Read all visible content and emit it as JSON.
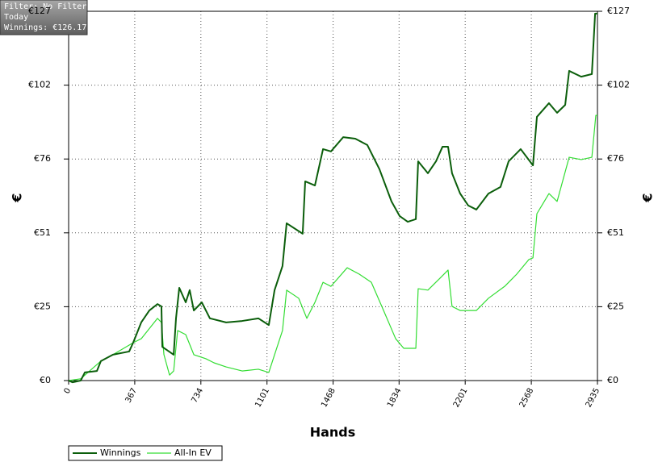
{
  "chart_data": {
    "type": "line",
    "xlabel": "Hands",
    "ylabel": "€",
    "y2label": "€",
    "annotations": [
      "Filter: No Filter",
      "Today",
      "Winnings: €126.17"
    ],
    "xlim": [
      0,
      2935
    ],
    "xticks": [
      0,
      367,
      734,
      1101,
      1468,
      1834,
      2201,
      2568,
      2935
    ],
    "ylim": [
      0,
      127
    ],
    "yticks": [
      {
        "value": 0,
        "label": "€0"
      },
      {
        "value": 25.4,
        "label": "€25"
      },
      {
        "value": 50.8,
        "label": "€51"
      },
      {
        "value": 76.2,
        "label": "€76"
      },
      {
        "value": 101.6,
        "label": "€102"
      },
      {
        "value": 127,
        "label": "€127"
      }
    ],
    "grid": true,
    "legend": "bottom-left",
    "series": [
      {
        "name": "Winnings",
        "color": "#0b5e0b",
        "x": [
          0,
          22,
          67,
          90,
          157,
          179,
          246,
          336,
          358,
          403,
          448,
          493,
          515,
          520,
          583,
          596,
          614,
          650,
          672,
          695,
          739,
          784,
          874,
          963,
          1053,
          1111,
          1143,
          1187,
          1210,
          1299,
          1313,
          1367,
          1412,
          1456,
          1524,
          1591,
          1658,
          1725,
          1792,
          1837,
          1882,
          1927,
          1940,
          1994,
          2039,
          2075,
          2106,
          2128,
          2173,
          2218,
          2263,
          2330,
          2397,
          2442,
          2509,
          2577,
          2599,
          2666,
          2711,
          2756,
          2778,
          2845,
          2904,
          2922,
          2935
        ],
        "values": [
          0,
          -0.6,
          0,
          2.8,
          3.3,
          6.7,
          8.9,
          10.0,
          13.0,
          20.0,
          24.1,
          26.3,
          25.5,
          11.6,
          8.9,
          21.4,
          31.9,
          26.9,
          31.1,
          24.1,
          26.9,
          21.4,
          20.0,
          20.5,
          21.4,
          19.1,
          31.1,
          39.4,
          54.1,
          50.5,
          68.5,
          67.1,
          79.6,
          78.8,
          83.7,
          83.2,
          81.0,
          72.7,
          61.6,
          56.6,
          54.6,
          55.5,
          75.4,
          71.3,
          75.4,
          80.4,
          80.4,
          71.3,
          64.3,
          60.2,
          58.8,
          64.3,
          66.6,
          75.4,
          79.6,
          74.0,
          90.7,
          95.4,
          92.1,
          94.8,
          106.5,
          104.5,
          105.4,
          126.2,
          126.2
        ]
      },
      {
        "name": "All-In EV",
        "color": "#33dd33",
        "x": [
          0,
          67,
          179,
          246,
          358,
          403,
          493,
          515,
          529,
          560,
          583,
          605,
          650,
          695,
          762,
          807,
          874,
          963,
          1053,
          1111,
          1143,
          1187,
          1210,
          1277,
          1322,
          1367,
          1412,
          1456,
          1546,
          1613,
          1680,
          1748,
          1815,
          1860,
          1927,
          1940,
          1994,
          2061,
          2106,
          2128,
          2173,
          2263,
          2330,
          2420,
          2487,
          2554,
          2577,
          2599,
          2666,
          2711,
          2778,
          2845,
          2904,
          2926,
          2935
        ],
        "values": [
          0,
          0.6,
          6.7,
          8.9,
          13.0,
          14.4,
          21.4,
          20.0,
          8.9,
          1.9,
          3.3,
          17.2,
          15.8,
          8.9,
          7.5,
          6.1,
          4.7,
          3.3,
          3.9,
          2.8,
          8.9,
          17.2,
          31.1,
          28.3,
          21.4,
          26.9,
          33.8,
          32.4,
          38.8,
          36.6,
          33.8,
          24.1,
          14.4,
          11.1,
          11.1,
          31.6,
          31.1,
          35.2,
          38.0,
          25.5,
          24.1,
          24.1,
          28.3,
          32.4,
          36.6,
          41.6,
          42.2,
          57.4,
          64.3,
          61.6,
          76.8,
          76.0,
          76.8,
          91.2,
          91.2
        ]
      }
    ]
  }
}
